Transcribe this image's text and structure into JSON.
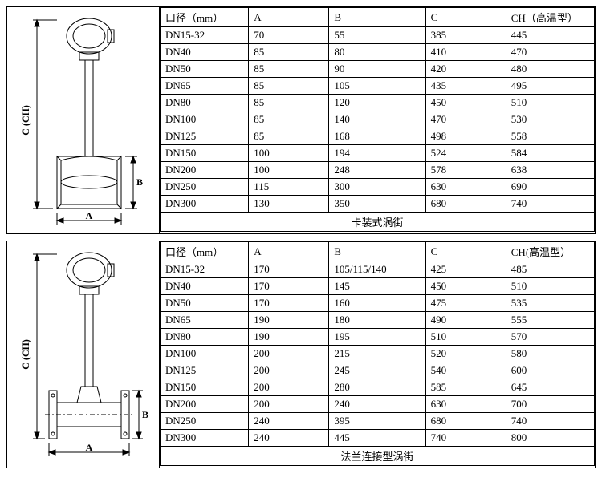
{
  "colors": {
    "stroke": "#000000",
    "fill_none": "none",
    "bg": "#ffffff"
  },
  "table1": {
    "headers": [
      "口径（mm）",
      "A",
      "B",
      "C",
      "CH（高温型）"
    ],
    "rows": [
      [
        "DN15-32",
        "70",
        "55",
        "385",
        "445"
      ],
      [
        "DN40",
        "85",
        "80",
        "410",
        "470"
      ],
      [
        "DN50",
        "85",
        "90",
        "420",
        "480"
      ],
      [
        "DN65",
        "85",
        "105",
        "435",
        "495"
      ],
      [
        "DN80",
        "85",
        "120",
        "450",
        "510"
      ],
      [
        "DN100",
        "85",
        "140",
        "470",
        "530"
      ],
      [
        "DN125",
        "85",
        "168",
        "498",
        "558"
      ],
      [
        "DN150",
        "100",
        "194",
        "524",
        "584"
      ],
      [
        "DN200",
        "100",
        "248",
        "578",
        "638"
      ],
      [
        "DN250",
        "115",
        "300",
        "630",
        "690"
      ],
      [
        "DN300",
        "130",
        "350",
        "680",
        "740"
      ]
    ],
    "caption": "卡装式涡街"
  },
  "table2": {
    "headers": [
      "口径（mm）",
      "A",
      "B",
      "C",
      "CH(高温型）"
    ],
    "rows": [
      [
        "DN15-32",
        "170",
        "105/115/140",
        "425",
        "485"
      ],
      [
        "DN40",
        "170",
        "145",
        "450",
        "510"
      ],
      [
        "DN50",
        "170",
        "160",
        "475",
        "535"
      ],
      [
        "DN65",
        "190",
        "180",
        "490",
        "555"
      ],
      [
        "DN80",
        "190",
        "195",
        "510",
        "570"
      ],
      [
        "DN100",
        "200",
        "215",
        "520",
        "580"
      ],
      [
        "DN125",
        "200",
        "245",
        "540",
        "600"
      ],
      [
        "DN150",
        "200",
        "280",
        "585",
        "645"
      ],
      [
        "DN200",
        "200",
        "240",
        "630",
        "700"
      ],
      [
        "DN250",
        "240",
        "395",
        "680",
        "740"
      ],
      [
        "DN300",
        "240",
        "445",
        "740",
        "800"
      ]
    ],
    "caption": "法兰连接型涡街"
  },
  "diagram_labels": {
    "A": "A",
    "B": "B",
    "C_CH": "C (CH)"
  }
}
